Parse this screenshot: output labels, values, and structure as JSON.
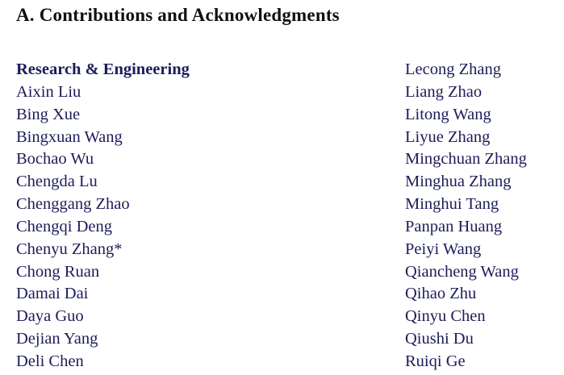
{
  "section_title": "A.  Contributions and Acknowledgments",
  "left_column": {
    "heading": "Research & Engineering",
    "names": [
      "Aixin Liu",
      "Bing Xue",
      "Bingxuan Wang",
      "Bochao Wu",
      "Chengda Lu",
      "Chenggang Zhao",
      "Chengqi Deng",
      "Chenyu Zhang*",
      "Chong Ruan",
      "Damai Dai",
      "Daya Guo",
      "Dejian Yang",
      "Deli Chen"
    ]
  },
  "right_column": {
    "names": [
      "Lecong Zhang",
      "Liang Zhao",
      "Litong Wang",
      "Liyue Zhang",
      "Mingchuan Zhang",
      "Minghua Zhang",
      "Minghui Tang",
      "Panpan Huang",
      "Peiyi Wang",
      "Qiancheng Wang",
      "Qihao Zhu",
      "Qinyu Chen",
      "Qiushi Du",
      "Ruiqi Ge"
    ]
  },
  "colors": {
    "text": "#111111",
    "names": "#1c1c5a"
  }
}
